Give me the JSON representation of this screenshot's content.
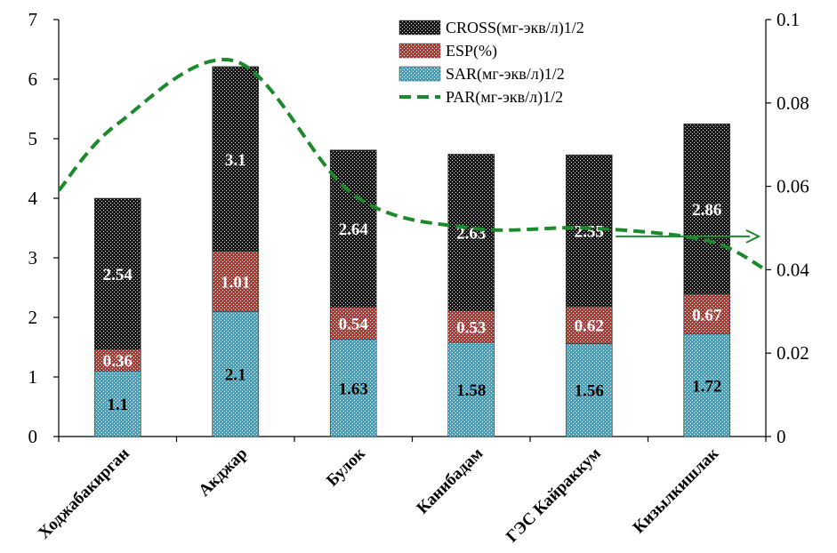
{
  "chart_data": {
    "type": "bar",
    "stacked": true,
    "categories": [
      "Ходжабакирган",
      "Акджар",
      "Булок",
      "Канибадам",
      "ГЭС Кайраккум",
      "Кизылкишлак"
    ],
    "series": [
      {
        "name": "SAR(мг-экв/л)1/2",
        "values": [
          1.1,
          2.1,
          1.63,
          1.58,
          1.56,
          1.72
        ],
        "labels": [
          "1.1",
          "2.1",
          "1.63",
          "1.58",
          "1.56",
          "1.72"
        ],
        "color": "#1ab2ea",
        "pattern": "dots",
        "label_color": "#000000"
      },
      {
        "name": "ESP(%)",
        "values": [
          0.36,
          1.01,
          0.54,
          0.53,
          0.62,
          0.67
        ],
        "labels": [
          "0.36",
          "1.01",
          "0.54",
          "0.53",
          "0.62",
          "0.67"
        ],
        "color": "#e8231d",
        "pattern": "dots",
        "label_color": "#ffffff"
      },
      {
        "name": "CROSS(мг-экв/л)1/2",
        "values": [
          2.54,
          3.1,
          2.64,
          2.63,
          2.55,
          2.86
        ],
        "labels": [
          "2.54",
          "3.1",
          "2.64",
          "2.63",
          "2.55",
          "2.86"
        ],
        "color": "#000000",
        "pattern": "checker",
        "label_color": "#ffffff"
      }
    ],
    "line_series": {
      "name": "PAR(мг-экв/л)1/2",
      "axis": "right",
      "color": "#1a8a2a",
      "style": "dashed",
      "x": [
        -0.5,
        0,
        1,
        2,
        3,
        4,
        5,
        5.5
      ],
      "values": [
        0.059,
        0.075,
        0.09,
        0.058,
        0.05,
        0.05,
        0.047,
        0.04
      ]
    },
    "y_left": {
      "min": 0,
      "max": 7,
      "ticks": [
        "0",
        "1",
        "2",
        "3",
        "4",
        "5",
        "6",
        "7"
      ]
    },
    "y_right": {
      "min": 0,
      "max": 0.1,
      "ticks": [
        "0",
        "0.02",
        "0.04",
        "0.06",
        "0.08",
        "0.1"
      ]
    },
    "legend_position": "top-right",
    "annotation": {
      "type": "arrow",
      "y": 0.048,
      "axis": "right",
      "direction": "right",
      "color": "#1a8a2a"
    }
  }
}
